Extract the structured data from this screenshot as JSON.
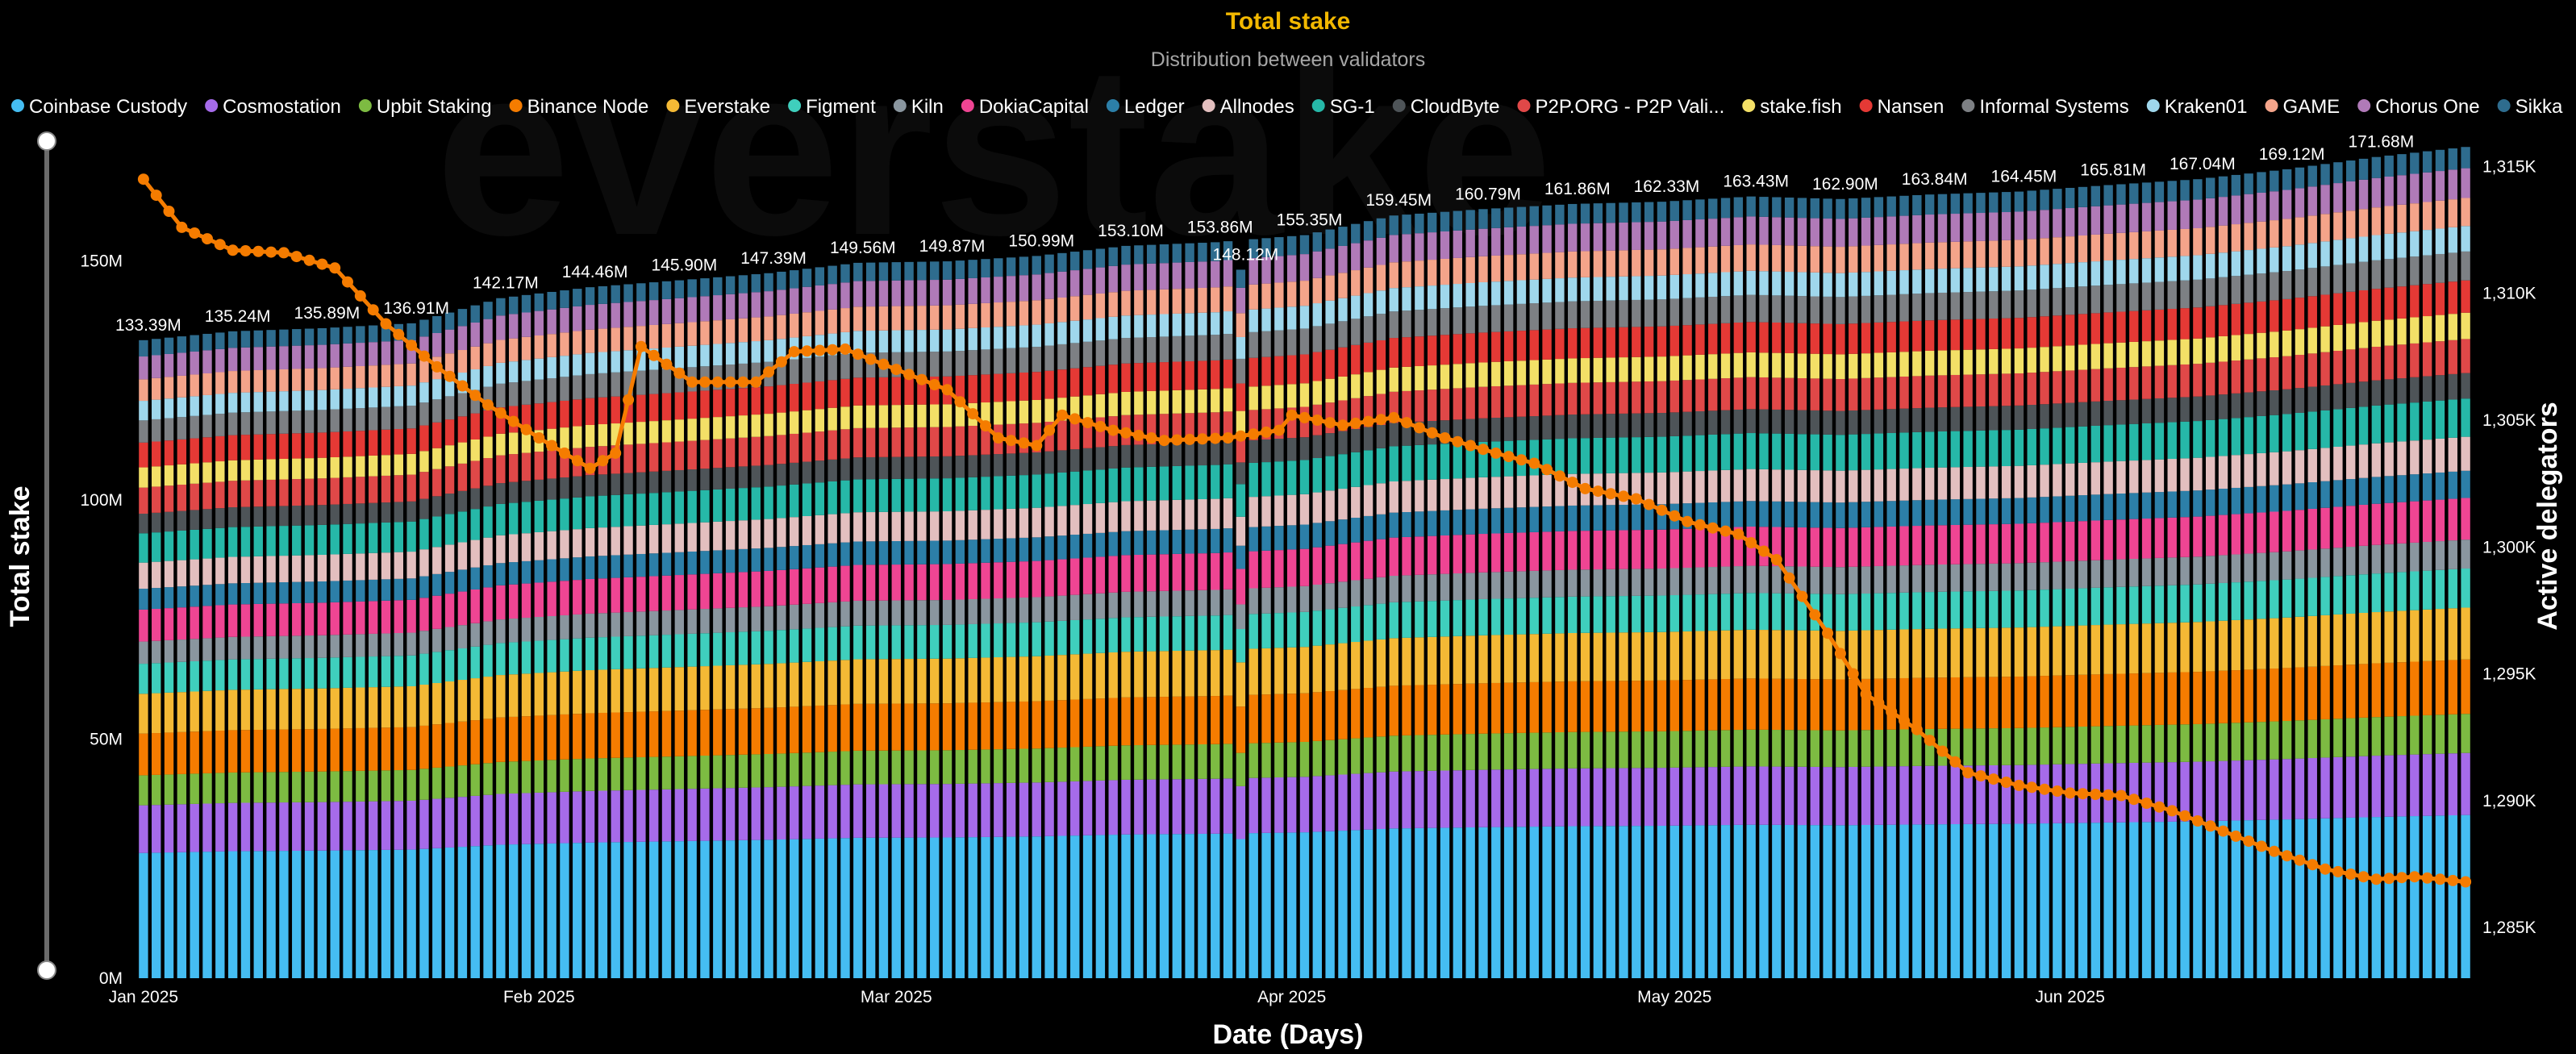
{
  "chart_data": {
    "type": "bar",
    "stacked": true,
    "title": "Total stake",
    "subtitle": "Distribution between validators",
    "xlabel": "Date (Days)",
    "ylabel": "Total stake",
    "y2label": "Active delegators",
    "watermark": "everstake",
    "ylim": [
      0,
      175000000
    ],
    "y_ticks": [
      {
        "v": 0,
        "t": "0M"
      },
      {
        "v": 50000000,
        "t": "50M"
      },
      {
        "v": 100000000,
        "t": "100M"
      },
      {
        "v": 150000000,
        "t": "150M"
      }
    ],
    "y2lim": [
      1283000,
      1316000
    ],
    "y2_ticks": [
      {
        "v": 1285000,
        "t": "1,285K"
      },
      {
        "v": 1290000,
        "t": "1,290K"
      },
      {
        "v": 1295000,
        "t": "1,295K"
      },
      {
        "v": 1300000,
        "t": "1,300K"
      },
      {
        "v": 1305000,
        "t": "1,305K"
      },
      {
        "v": 1310000,
        "t": "1,310K"
      },
      {
        "v": 1315000,
        "t": "1,315K"
      }
    ],
    "x_range": [
      "2025-01-01",
      "2025-07-02"
    ],
    "x_ticks": [
      {
        "d": "2025-01-01",
        "t": "Jan 2025"
      },
      {
        "d": "2025-02-01",
        "t": "Feb 2025"
      },
      {
        "d": "2025-03-01",
        "t": "Mar 2025"
      },
      {
        "d": "2025-04-01",
        "t": "Apr 2025"
      },
      {
        "d": "2025-05-01",
        "t": "May 2025"
      },
      {
        "d": "2025-06-01",
        "t": "Jun 2025"
      }
    ],
    "legend_position": "top",
    "series": [
      {
        "name": "Coinbase Custody",
        "color": "#45bdf2"
      },
      {
        "name": "Cosmostation",
        "color": "#a66bea"
      },
      {
        "name": "Upbit Staking",
        "color": "#7dbb42"
      },
      {
        "name": "Binance Node",
        "color": "#f57c00"
      },
      {
        "name": "Everstake",
        "color": "#f4b935"
      },
      {
        "name": "Figment",
        "color": "#3fcfbd"
      },
      {
        "name": "Kiln",
        "color": "#8a969f"
      },
      {
        "name": "DokiaCapital",
        "color": "#ef4593"
      },
      {
        "name": "Ledger",
        "color": "#2c7fa8"
      },
      {
        "name": "Allnodes",
        "color": "#e3bfbf"
      },
      {
        "name": "SG-1",
        "color": "#26b8a8"
      },
      {
        "name": "CloudByte",
        "color": "#4e5458"
      },
      {
        "name": "P2P.ORG - P2P Vali...",
        "color": "#e04848"
      },
      {
        "name": "stake.fish",
        "color": "#f3e067"
      },
      {
        "name": "Nansen",
        "color": "#e53935"
      },
      {
        "name": "Informal Systems",
        "color": "#7d8084"
      },
      {
        "name": "Kraken01",
        "color": "#9fd7ec"
      },
      {
        "name": "GAME",
        "color": "#f4a48a"
      },
      {
        "name": "Chorus One",
        "color": "#b07ab8"
      },
      {
        "name": "Sikka",
        "color": "#2e6c8e"
      }
    ],
    "line_series": {
      "name": "Active delegators",
      "color": "#f57c00"
    },
    "total_labels": [
      {
        "d": "2025-01-01",
        "t": "133.39M",
        "v": 133390000
      },
      {
        "d": "2025-01-08",
        "t": "135.24M",
        "v": 135240000
      },
      {
        "d": "2025-01-15",
        "t": "135.89M",
        "v": 135890000
      },
      {
        "d": "2025-01-22",
        "t": "136.91M",
        "v": 136910000
      },
      {
        "d": "2025-01-29",
        "t": "142.17M",
        "v": 142170000
      },
      {
        "d": "2025-02-05",
        "t": "144.46M",
        "v": 144460000
      },
      {
        "d": "2025-02-12",
        "t": "145.90M",
        "v": 145900000
      },
      {
        "d": "2025-02-19",
        "t": "147.39M",
        "v": 147390000
      },
      {
        "d": "2025-02-26",
        "t": "149.56M",
        "v": 149560000
      },
      {
        "d": "2025-03-05",
        "t": "149.87M",
        "v": 149870000
      },
      {
        "d": "2025-03-12",
        "t": "150.99M",
        "v": 150990000
      },
      {
        "d": "2025-03-19",
        "t": "153.10M",
        "v": 153100000
      },
      {
        "d": "2025-03-26",
        "t": "153.86M",
        "v": 153860000
      },
      {
        "d": "2025-03-28",
        "t": "148.12M",
        "v": 148120000
      },
      {
        "d": "2025-04-02",
        "t": "155.35M",
        "v": 155350000
      },
      {
        "d": "2025-04-09",
        "t": "159.45M",
        "v": 159450000
      },
      {
        "d": "2025-04-16",
        "t": "160.79M",
        "v": 160790000
      },
      {
        "d": "2025-04-23",
        "t": "161.86M",
        "v": 161860000
      },
      {
        "d": "2025-04-30",
        "t": "162.33M",
        "v": 162330000
      },
      {
        "d": "2025-05-07",
        "t": "163.43M",
        "v": 163430000
      },
      {
        "d": "2025-05-14",
        "t": "162.90M",
        "v": 162900000
      },
      {
        "d": "2025-05-21",
        "t": "163.84M",
        "v": 163840000
      },
      {
        "d": "2025-05-28",
        "t": "164.45M",
        "v": 164450000
      },
      {
        "d": "2025-06-04",
        "t": "165.81M",
        "v": 165810000
      },
      {
        "d": "2025-06-11",
        "t": "167.04M",
        "v": 167040000
      },
      {
        "d": "2025-06-18",
        "t": "169.12M",
        "v": 169120000
      },
      {
        "d": "2025-06-25",
        "t": "171.68M",
        "v": 171680000
      }
    ],
    "line_values": [
      {
        "d": "2025-01-01",
        "v": 1314500
      },
      {
        "d": "2025-01-04",
        "v": 1312600
      },
      {
        "d": "2025-01-08",
        "v": 1311700
      },
      {
        "d": "2025-01-12",
        "v": 1311600
      },
      {
        "d": "2025-01-16",
        "v": 1311000
      },
      {
        "d": "2025-01-20",
        "v": 1308800
      },
      {
        "d": "2025-01-24",
        "v": 1307100
      },
      {
        "d": "2025-01-28",
        "v": 1305600
      },
      {
        "d": "2025-02-01",
        "v": 1304300
      },
      {
        "d": "2025-02-05",
        "v": 1303100
      },
      {
        "d": "2025-02-07",
        "v": 1303700
      },
      {
        "d": "2025-02-09",
        "v": 1307900
      },
      {
        "d": "2025-02-13",
        "v": 1306500
      },
      {
        "d": "2025-02-18",
        "v": 1306500
      },
      {
        "d": "2025-02-21",
        "v": 1307700
      },
      {
        "d": "2025-02-25",
        "v": 1307800
      },
      {
        "d": "2025-03-01",
        "v": 1307000
      },
      {
        "d": "2025-03-05",
        "v": 1306200
      },
      {
        "d": "2025-03-09",
        "v": 1304300
      },
      {
        "d": "2025-03-12",
        "v": 1304000
      },
      {
        "d": "2025-03-14",
        "v": 1305200
      },
      {
        "d": "2025-03-18",
        "v": 1304600
      },
      {
        "d": "2025-03-22",
        "v": 1304200
      },
      {
        "d": "2025-03-27",
        "v": 1304300
      },
      {
        "d": "2025-03-31",
        "v": 1304600
      },
      {
        "d": "2025-04-01",
        "v": 1305200
      },
      {
        "d": "2025-04-05",
        "v": 1304800
      },
      {
        "d": "2025-04-09",
        "v": 1305100
      },
      {
        "d": "2025-04-13",
        "v": 1304300
      },
      {
        "d": "2025-04-17",
        "v": 1303700
      },
      {
        "d": "2025-04-20",
        "v": 1303300
      },
      {
        "d": "2025-04-24",
        "v": 1302300
      },
      {
        "d": "2025-04-28",
        "v": 1301900
      },
      {
        "d": "2025-05-02",
        "v": 1301000
      },
      {
        "d": "2025-05-06",
        "v": 1300500
      },
      {
        "d": "2025-05-09",
        "v": 1299500
      },
      {
        "d": "2025-05-13",
        "v": 1296600
      },
      {
        "d": "2025-05-16",
        "v": 1294200
      },
      {
        "d": "2025-05-20",
        "v": 1292800
      },
      {
        "d": "2025-05-24",
        "v": 1291100
      },
      {
        "d": "2025-05-28",
        "v": 1290600
      },
      {
        "d": "2025-06-01",
        "v": 1290300
      },
      {
        "d": "2025-06-05",
        "v": 1290200
      },
      {
        "d": "2025-06-09",
        "v": 1289600
      },
      {
        "d": "2025-06-13",
        "v": 1288800
      },
      {
        "d": "2025-06-17",
        "v": 1288000
      },
      {
        "d": "2025-06-21",
        "v": 1287300
      },
      {
        "d": "2025-06-25",
        "v": 1286900
      },
      {
        "d": "2025-06-28",
        "v": 1287000
      },
      {
        "d": "2025-07-02",
        "v": 1286800
      }
    ]
  }
}
